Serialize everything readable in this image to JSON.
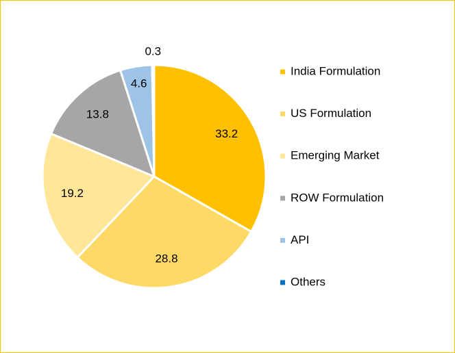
{
  "chart_data": {
    "type": "pie",
    "categories": [
      "India Formulation",
      "US Formulation",
      "Emerging Market",
      "ROW Formulation",
      "API",
      "Others"
    ],
    "values": [
      33.2,
      28.8,
      19.2,
      13.8,
      4.6,
      0.3
    ],
    "colors": [
      "#FFC000",
      "#FFD966",
      "#FFE699",
      "#A6A6A6",
      "#9DC3E6",
      "#0070C0"
    ],
    "legend": "right"
  }
}
